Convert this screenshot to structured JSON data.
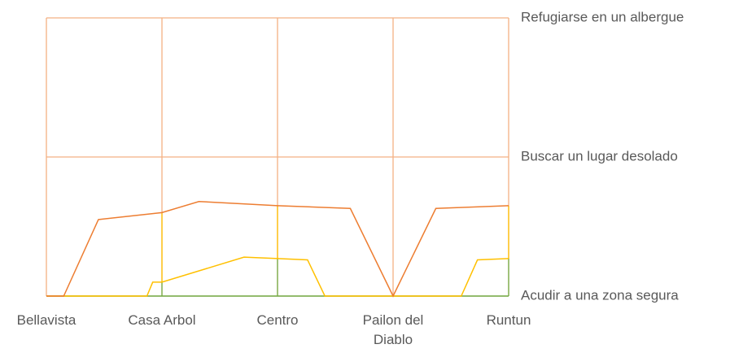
{
  "chart_data": {
    "type": "line",
    "xlim": [
      0,
      4
    ],
    "xticks": [
      {
        "value": 0,
        "label": "Bellavista"
      },
      {
        "value": 1,
        "label": "Casa Arbol"
      },
      {
        "value": 2,
        "label": "Centro"
      },
      {
        "value": 3,
        "label": "Pailon del Diablo"
      },
      {
        "value": 4,
        "label": "Runtun"
      }
    ],
    "ylim": [
      0,
      2
    ],
    "yticks": [
      {
        "value": 0,
        "label": "Acudir a una zona segura"
      },
      {
        "value": 1,
        "label": "Buscar un lugar desolado"
      },
      {
        "value": 2,
        "label": "Refugiarse en un albergue"
      }
    ],
    "grid": true,
    "series": [
      {
        "color": "#ed7d31",
        "x": [
          0,
          0.15,
          0.45,
          1,
          1.32,
          2,
          2.63,
          3,
          3.37,
          4
        ],
        "values": [
          0,
          0,
          0.55,
          0.6,
          0.68,
          0.65,
          0.63,
          0,
          0.63,
          0.65
        ]
      },
      {
        "color": "#ffc000",
        "x": [
          0,
          0.87,
          0.92,
          1,
          1.71,
          2,
          2.26,
          2.41,
          3,
          3.59,
          3.73,
          4
        ],
        "values": [
          0,
          0,
          0.1,
          0.1,
          0.28,
          0.27,
          0.26,
          0,
          0,
          0,
          0.26,
          0.27
        ]
      },
      {
        "color": "#70ad47",
        "x": [
          0,
          1,
          2,
          3,
          4
        ],
        "values": [
          0,
          0,
          0,
          0,
          0
        ]
      }
    ]
  }
}
